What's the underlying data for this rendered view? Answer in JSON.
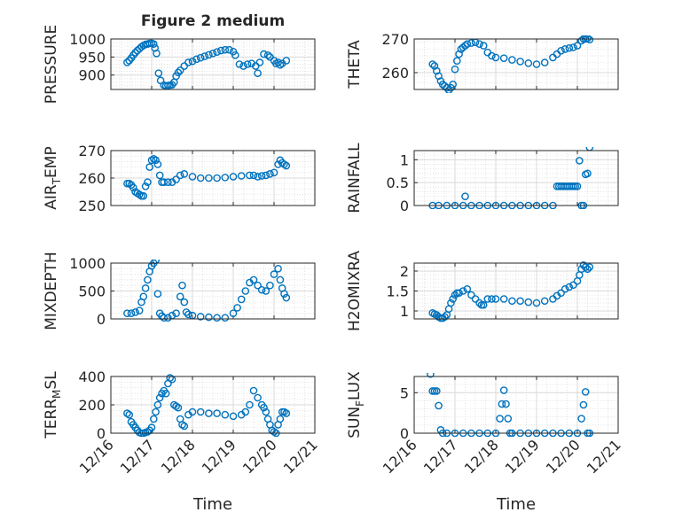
{
  "figure": {
    "title": "Figure 2 medium",
    "xlabel": "Time",
    "x_ticks": [
      "12/16",
      "12/17",
      "12/18",
      "12/19",
      "12/20",
      "12/21"
    ],
    "marker_color": "#0072BD",
    "marker": "open-circle",
    "grid": "on (major + minor, dotted)"
  },
  "chart_data": [
    {
      "type": "scatter",
      "ylabel": "PRESSURE",
      "ylim": [
        860,
        1000
      ],
      "yticks": [
        900,
        950,
        1000
      ],
      "xlim": [
        "12/16",
        "12/21"
      ],
      "x": [
        16.4,
        16.45,
        16.5,
        16.55,
        16.6,
        16.65,
        16.7,
        16.75,
        16.8,
        16.85,
        16.9,
        16.95,
        17.0,
        17.05,
        17.08,
        17.12,
        17.17,
        17.22,
        17.3,
        17.35,
        17.4,
        17.45,
        17.5,
        17.55,
        17.6,
        17.65,
        17.7,
        17.8,
        17.9,
        18.0,
        18.1,
        18.2,
        18.3,
        18.4,
        18.5,
        18.6,
        18.7,
        18.8,
        18.9,
        19.0,
        19.05,
        19.15,
        19.25,
        19.35,
        19.45,
        19.55,
        19.6,
        19.65,
        19.75,
        19.85,
        19.9,
        20.0,
        20.05,
        20.1,
        20.15,
        20.2,
        20.3
      ],
      "y": [
        935,
        940,
        947,
        955,
        962,
        968,
        973,
        978,
        982,
        985,
        986,
        988,
        988,
        986,
        975,
        960,
        905,
        885,
        872,
        870,
        871,
        872,
        873,
        880,
        897,
        907,
        913,
        925,
        935,
        938,
        944,
        948,
        952,
        956,
        960,
        964,
        968,
        970,
        970,
        965,
        955,
        930,
        925,
        930,
        932,
        925,
        905,
        935,
        958,
        955,
        950,
        940,
        932,
        935,
        928,
        932,
        940
      ]
    },
    {
      "type": "scatter",
      "ylabel": "THETA",
      "ylim": [
        255,
        270
      ],
      "yticks": [
        260,
        270
      ],
      "xlim": [
        "12/16",
        "12/21"
      ],
      "x": [
        16.45,
        16.5,
        16.55,
        16.6,
        16.65,
        16.7,
        16.75,
        16.8,
        16.85,
        16.9,
        16.95,
        17.0,
        17.05,
        17.1,
        17.15,
        17.2,
        17.25,
        17.3,
        17.4,
        17.5,
        17.6,
        17.7,
        17.8,
        17.9,
        18.0,
        18.2,
        18.4,
        18.6,
        18.8,
        19.0,
        19.2,
        19.4,
        19.5,
        19.6,
        19.7,
        19.8,
        19.9,
        20.0,
        20.1,
        20.15,
        20.2,
        20.25,
        20.3
      ],
      "y": [
        262.5,
        262.0,
        260.5,
        259.0,
        257.5,
        256.5,
        256.0,
        255.5,
        254.8,
        255.5,
        256.5,
        261.0,
        263.5,
        265.5,
        267.0,
        267.5,
        268.0,
        268.5,
        268.8,
        269.0,
        268.5,
        268.0,
        266.0,
        265.0,
        264.5,
        264.3,
        263.8,
        263.3,
        262.8,
        262.5,
        263.0,
        264.5,
        265.5,
        266.5,
        267.0,
        267.3,
        267.5,
        268.0,
        269.5,
        270.0,
        270.0,
        270.2,
        269.8
      ]
    },
    {
      "type": "scatter",
      "ylabel": "AIR_TEMP",
      "ylim": [
        250,
        270
      ],
      "yticks": [
        250,
        260,
        270
      ],
      "xlim": [
        "12/16",
        "12/21"
      ],
      "x": [
        16.4,
        16.45,
        16.5,
        16.55,
        16.6,
        16.65,
        16.7,
        16.75,
        16.8,
        16.85,
        16.9,
        16.95,
        17.0,
        17.05,
        17.1,
        17.15,
        17.2,
        17.25,
        17.3,
        17.4,
        17.5,
        17.6,
        17.7,
        17.8,
        18.0,
        18.2,
        18.4,
        18.6,
        18.8,
        19.0,
        19.2,
        19.4,
        19.5,
        19.6,
        19.7,
        19.8,
        19.9,
        20.0,
        20.1,
        20.15,
        20.2,
        20.25,
        20.3
      ],
      "y": [
        258,
        258,
        257.5,
        256.5,
        255,
        254.5,
        254,
        253.5,
        253.5,
        257,
        258.5,
        264,
        266.5,
        267,
        266.5,
        265,
        261,
        258.5,
        258.5,
        258.5,
        258.5,
        259.5,
        261,
        261.5,
        260.5,
        260,
        260,
        260,
        260.2,
        260.5,
        260.8,
        261,
        261,
        260.5,
        260.8,
        261,
        261.5,
        262,
        265,
        266.5,
        265.5,
        265,
        264.5
      ]
    },
    {
      "type": "scatter",
      "ylabel": "RAINFALL",
      "ylim": [
        0,
        1.2
      ],
      "yticks": [
        0,
        0.5,
        1
      ],
      "xlim": [
        "12/16",
        "12/21"
      ],
      "x": [
        16.45,
        16.6,
        16.8,
        17.0,
        17.2,
        17.4,
        17.6,
        17.8,
        18.0,
        18.2,
        18.4,
        18.6,
        18.8,
        19.0,
        19.2,
        19.4,
        19.5,
        19.55,
        19.6,
        19.65,
        19.7,
        19.75,
        19.8,
        19.85,
        19.9,
        19.95,
        20.0,
        17.25,
        20.1,
        20.05,
        20.15,
        20.2,
        20.25,
        20.3
      ],
      "y": [
        0,
        0,
        0,
        0,
        0,
        0,
        0,
        0,
        0,
        0,
        0,
        0,
        0,
        0,
        0,
        0,
        0.42,
        0.42,
        0.42,
        0.42,
        0.42,
        0.42,
        0.42,
        0.42,
        0.42,
        0.42,
        0.42,
        0.2,
        0,
        0.98,
        0,
        0.68,
        0.7,
        1.27
      ]
    },
    {
      "type": "scatter",
      "ylabel": "MIXDEPTH",
      "ylim": [
        0,
        1000
      ],
      "yticks": [
        0,
        500,
        1000
      ],
      "xlim": [
        "12/16",
        "12/21"
      ],
      "x": [
        16.4,
        16.5,
        16.6,
        16.7,
        16.75,
        16.8,
        16.85,
        16.9,
        16.95,
        17.0,
        17.05,
        17.1,
        17.15,
        17.2,
        17.25,
        17.3,
        17.4,
        17.5,
        17.6,
        17.7,
        17.75,
        17.8,
        17.85,
        17.9,
        18.0,
        18.2,
        18.4,
        18.6,
        18.8,
        19.0,
        19.1,
        19.2,
        19.3,
        19.4,
        19.5,
        19.6,
        19.7,
        19.8,
        19.9,
        20.0,
        20.1,
        20.15,
        20.2,
        20.25,
        20.3
      ],
      "y": [
        100,
        100,
        120,
        150,
        300,
        400,
        550,
        700,
        850,
        950,
        1000,
        1050,
        450,
        100,
        50,
        20,
        20,
        60,
        100,
        400,
        600,
        300,
        120,
        80,
        60,
        40,
        30,
        20,
        20,
        100,
        200,
        350,
        500,
        650,
        700,
        600,
        520,
        500,
        600,
        800,
        900,
        700,
        550,
        450,
        380
      ]
    },
    {
      "type": "scatter",
      "ylabel": "H2OMIXRA",
      "ylim": [
        0.8,
        2.2
      ],
      "yticks": [
        1,
        1.5,
        2
      ],
      "xlim": [
        "12/16",
        "12/21"
      ],
      "x": [
        16.45,
        16.5,
        16.55,
        16.6,
        16.65,
        16.7,
        16.75,
        16.8,
        16.85,
        16.9,
        16.95,
        17.0,
        17.05,
        17.1,
        17.2,
        17.3,
        17.4,
        17.5,
        17.6,
        17.65,
        17.7,
        17.8,
        17.9,
        18.0,
        18.2,
        18.4,
        18.6,
        18.8,
        19.0,
        19.2,
        19.4,
        19.5,
        19.6,
        19.7,
        19.8,
        19.9,
        20.0,
        20.05,
        20.1,
        20.15,
        20.2,
        20.25,
        20.3
      ],
      "y": [
        0.95,
        0.92,
        0.9,
        0.85,
        0.82,
        0.82,
        0.85,
        0.9,
        1.05,
        1.2,
        1.3,
        1.4,
        1.45,
        1.45,
        1.5,
        1.55,
        1.4,
        1.3,
        1.2,
        1.15,
        1.15,
        1.3,
        1.3,
        1.3,
        1.3,
        1.25,
        1.25,
        1.22,
        1.2,
        1.25,
        1.3,
        1.38,
        1.45,
        1.55,
        1.6,
        1.65,
        1.75,
        1.9,
        2.05,
        2.15,
        2.1,
        2.05,
        2.1
      ]
    },
    {
      "type": "scatter",
      "ylabel": "TERR_MSL",
      "ylim": [
        0,
        400
      ],
      "yticks": [
        0,
        200,
        400
      ],
      "xlim": [
        "12/16",
        "12/21"
      ],
      "x": [
        16.4,
        16.45,
        16.5,
        16.55,
        16.6,
        16.65,
        16.7,
        16.75,
        16.8,
        16.85,
        16.9,
        16.95,
        17.0,
        17.05,
        17.1,
        17.15,
        17.2,
        17.25,
        17.3,
        17.35,
        17.4,
        17.45,
        17.5,
        17.55,
        17.6,
        17.65,
        17.7,
        17.75,
        17.8,
        17.9,
        18.0,
        18.2,
        18.4,
        18.6,
        18.8,
        19.0,
        19.2,
        19.3,
        19.4,
        19.5,
        19.6,
        19.7,
        19.75,
        19.8,
        19.85,
        19.9,
        19.95,
        20.0,
        20.05,
        20.1,
        20.15,
        20.2,
        20.25,
        20.3
      ],
      "y": [
        140,
        130,
        80,
        60,
        40,
        20,
        5,
        0,
        0,
        5,
        10,
        20,
        40,
        100,
        150,
        200,
        250,
        280,
        300,
        280,
        350,
        390,
        380,
        200,
        190,
        180,
        100,
        60,
        50,
        130,
        150,
        150,
        140,
        140,
        130,
        120,
        130,
        150,
        200,
        300,
        250,
        200,
        180,
        150,
        100,
        60,
        20,
        10,
        0,
        60,
        100,
        150,
        150,
        140
      ]
    },
    {
      "type": "scatter",
      "ylabel": "SUN_FLUX",
      "ylim": [
        0,
        7
      ],
      "yticks": [
        0,
        5
      ],
      "xlim": [
        "12/16",
        "12/21"
      ],
      "x": [
        16.4,
        16.45,
        16.5,
        16.55,
        16.6,
        16.65,
        16.7,
        16.8,
        17.0,
        17.2,
        17.4,
        17.6,
        17.8,
        18.0,
        18.1,
        18.15,
        18.2,
        18.25,
        18.3,
        18.35,
        18.4,
        18.6,
        18.8,
        19.0,
        19.2,
        19.4,
        19.6,
        19.8,
        20.0,
        20.1,
        20.15,
        20.2,
        20.25,
        20.3
      ],
      "y": [
        7.3,
        5.2,
        5.2,
        5.2,
        3.4,
        0.4,
        0,
        0,
        0,
        0,
        0,
        0,
        0,
        0,
        1.8,
        3.6,
        5.3,
        3.6,
        1.8,
        0,
        0,
        0,
        0,
        0,
        0,
        0,
        0,
        0,
        0,
        1.8,
        3.5,
        5.1,
        0,
        0
      ]
    }
  ]
}
